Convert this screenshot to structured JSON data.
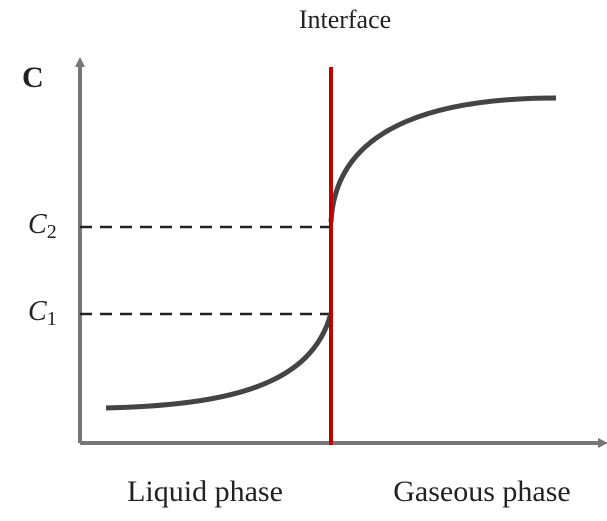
{
  "title": "Interface",
  "y_axis_label": "C",
  "levels": [
    {
      "label": "C",
      "subscript": "2"
    },
    {
      "label": "C",
      "subscript": "1"
    }
  ],
  "regions": [
    "Liquid phase",
    "Gaseous phase"
  ]
}
